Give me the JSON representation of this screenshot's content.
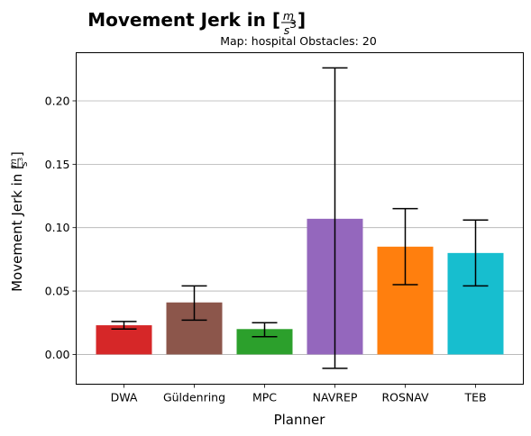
{
  "chart_data": {
    "type": "bar",
    "title": "Movement Jerk in [m/s³]",
    "title_prefix": "Movement Jerk in ",
    "unit_numerator": "m",
    "unit_denominator": "s",
    "unit_exponent": "3",
    "subtitle": "Map: hospital Obstacles: 20",
    "xlabel": "Planner",
    "ylabel": "Movement Jerk in [m/s³]",
    "ylabel_prefix": "Movement Jerk in ",
    "categories": [
      "DWA",
      "Güldenring",
      "MPC",
      "NAVREP",
      "ROSNAV",
      "TEB"
    ],
    "values": [
      0.023,
      0.041,
      0.02,
      0.107,
      0.085,
      0.08
    ],
    "error_low": [
      0.02,
      0.027,
      0.014,
      -0.011,
      0.055,
      0.054
    ],
    "error_high": [
      0.026,
      0.054,
      0.025,
      0.226,
      0.115,
      0.106
    ],
    "colors": [
      "#d62728",
      "#8c564b",
      "#2ca02c",
      "#9467bd",
      "#ff7f0e",
      "#17becf"
    ],
    "ylim": [
      -0.0235,
      0.238
    ],
    "yticks": [
      0.0,
      0.05,
      0.1,
      0.15,
      0.2
    ],
    "ytick_labels": [
      "0.00",
      "0.05",
      "0.10",
      "0.15",
      "0.20"
    ],
    "grid": "y-major"
  }
}
